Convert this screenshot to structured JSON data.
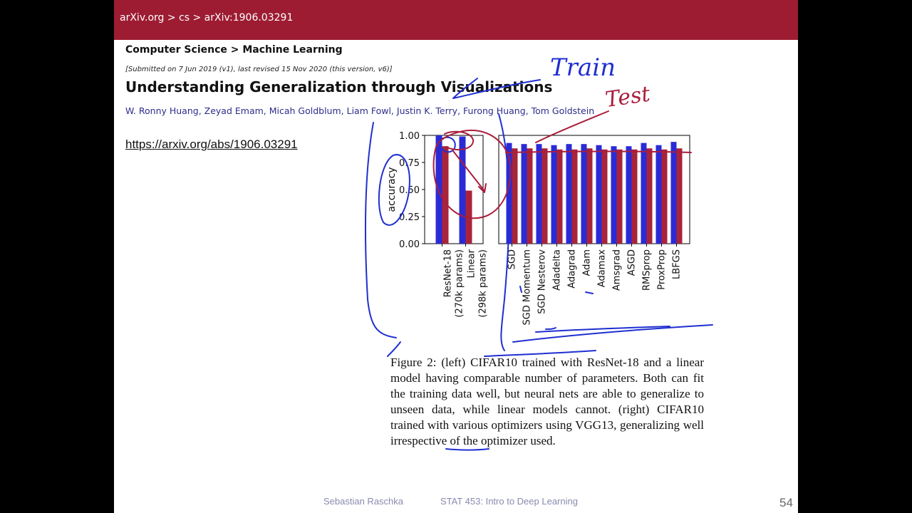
{
  "banner": {
    "breadcrumb": "arXiv.org > cs > arXiv:1906.03291"
  },
  "paper": {
    "subject": "Computer Science > Machine Learning",
    "submitted": "[Submitted on 7 Jun 2019 (v1), last revised 15 Nov 2020 (this version, v6)]",
    "title": "Understanding Generalization through Visualizations",
    "authors": "W. Ronny Huang, Zeyad Emam, Micah Goldblum, Liam Fowl, Justin K. Terry, Furong Huang, Tom Goldstein"
  },
  "link": "https://arxiv.org/abs/1906.03291",
  "chart_data": [
    {
      "type": "bar",
      "ylabel": "accuracy",
      "ylim": [
        0,
        1.0
      ],
      "yticks": [
        "0.00",
        "0.25",
        "0.50",
        "0.75",
        "1.00"
      ],
      "categories": [
        "ResNet-18\n(270k params)",
        "Linear\n(298k params)"
      ],
      "series": [
        {
          "color": "#2b2bd6",
          "values": [
            1.0,
            0.99
          ]
        },
        {
          "color": "#a8243a",
          "values": [
            0.9,
            0.49
          ]
        }
      ]
    },
    {
      "type": "bar",
      "ylim": [
        0,
        1.0
      ],
      "categories": [
        "SGD",
        "SGD Momentum",
        "SGD Nesterov",
        "Adadelta",
        "Adagrad",
        "Adam",
        "Adamax",
        "Amsgrad",
        "ASGD",
        "RMSprop",
        "ProxProp",
        "LBFGS"
      ],
      "series": [
        {
          "color": "#2b2bd6",
          "values": [
            0.93,
            0.92,
            0.92,
            0.91,
            0.92,
            0.92,
            0.91,
            0.9,
            0.9,
            0.93,
            0.91,
            0.94
          ]
        },
        {
          "color": "#a8243a",
          "values": [
            0.88,
            0.88,
            0.88,
            0.87,
            0.87,
            0.88,
            0.87,
            0.87,
            0.87,
            0.88,
            0.87,
            0.88
          ]
        }
      ]
    }
  ],
  "caption": "Figure 2: (left) CIFAR10 trained with ResNet-18 and a linear model having comparable number of parameters. Both can fit the training data well, but neural nets are able to generalize to unseen data, while linear models cannot. (right) CIFAR10 trained with various optimizers using VGG13, generalizing well irrespective of the optimizer used.",
  "annotations": {
    "train": "Train",
    "test": "Test"
  },
  "footer": {
    "author": "Sebastian Raschka",
    "course": "STAT 453: Intro to Deep Learning",
    "page": "54"
  }
}
